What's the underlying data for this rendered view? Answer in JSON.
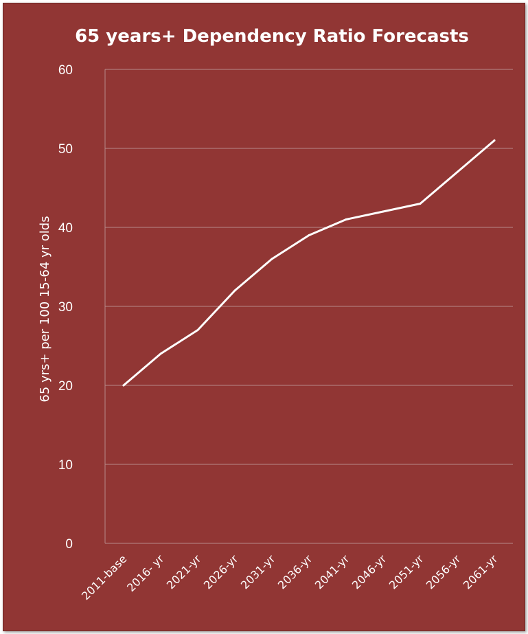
{
  "chart_data": {
    "type": "line",
    "title": "65 years+ Dependency Ratio Forecasts",
    "xlabel": "",
    "ylabel": "65 yrs+ per 100 15-64 yr olds",
    "categories": [
      "2011-base",
      "2016- yr",
      "2021-yr",
      "2026-yr",
      "2031-yr",
      "2036-yr",
      "2041-yr",
      "2046-yr",
      "2051-yr",
      "2056-yr",
      "2061-yr"
    ],
    "series": [
      {
        "values": [
          20,
          24,
          27,
          32,
          36,
          39,
          41,
          42,
          43,
          47,
          51
        ]
      }
    ],
    "ylim": [
      0,
      60
    ],
    "yticks": [
      0,
      10,
      20,
      30,
      40,
      50,
      60
    ],
    "grid": true,
    "colors": {
      "background": "#913634",
      "line": "#ffffff",
      "grid": "#b88b8a",
      "text": "#ffffff"
    }
  }
}
